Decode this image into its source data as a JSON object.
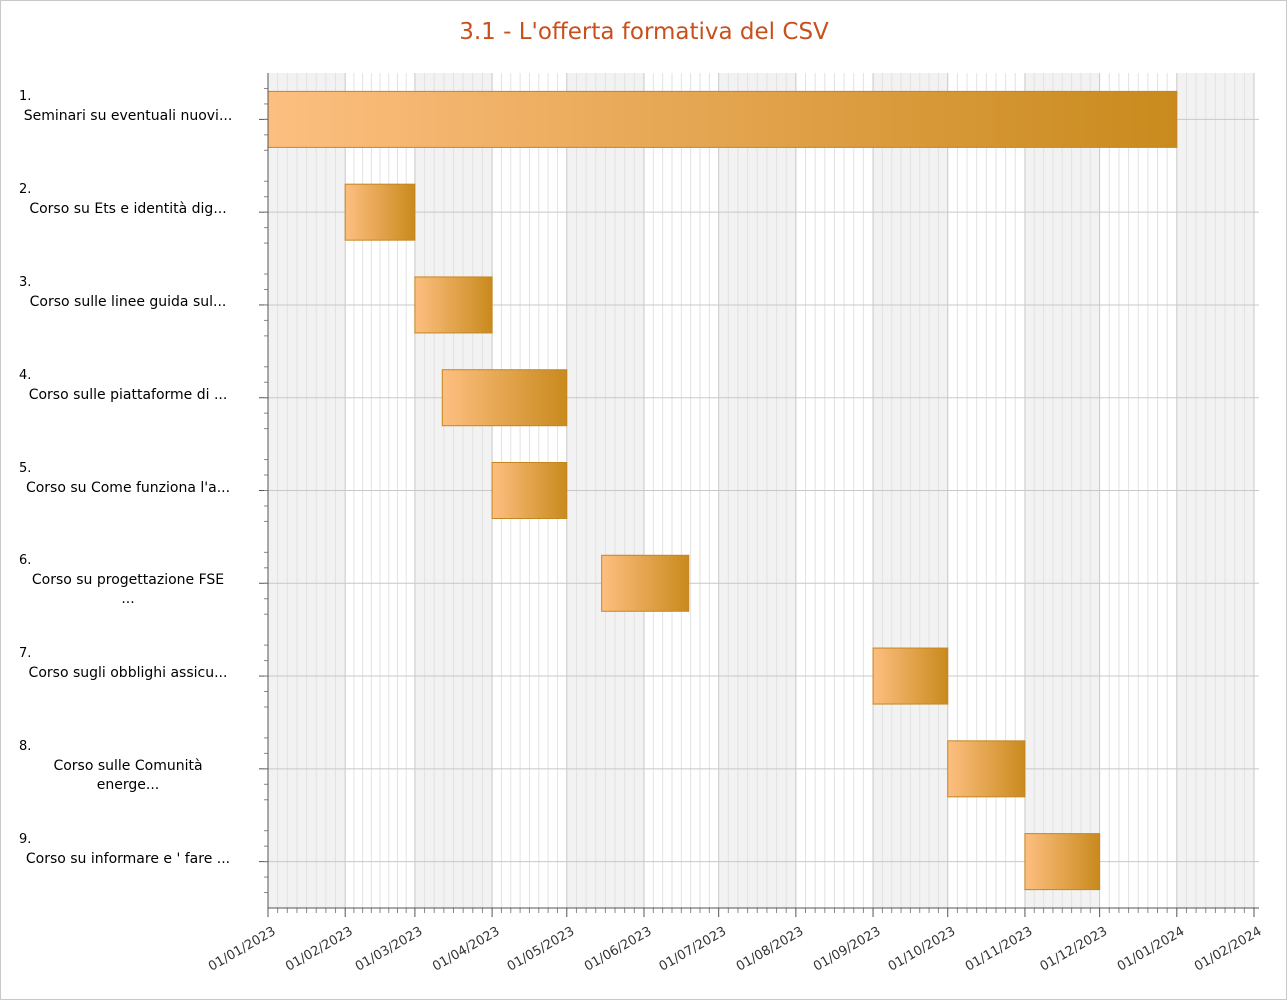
{
  "chart_data": {
    "type": "gantt",
    "title": "3.1 - L'offerta formativa del CSV",
    "tasks": [
      {
        "number": "1.",
        "name": "Seminari su eventuali nuovi...",
        "start": "2023-01-01",
        "end": "2024-01-01"
      },
      {
        "number": "2.",
        "name": "Corso su Ets e identità dig...",
        "start": "2023-02-01",
        "end": "2023-03-01"
      },
      {
        "number": "3.",
        "name": "Corso sulle linee guida sul...",
        "start": "2023-03-01",
        "end": "2023-04-01"
      },
      {
        "number": "4.",
        "name": "Corso sulle piattaforme di ...",
        "start": "2023-03-12",
        "end": "2023-05-01"
      },
      {
        "number": "5.",
        "name": "Corso  su Come funziona l'a...",
        "start": "2023-04-01",
        "end": "2023-05-01"
      },
      {
        "number": "6.",
        "name": "Corso su progettazione FSE ...",
        "start": "2023-05-15",
        "end": "2023-06-19"
      },
      {
        "number": "7.",
        "name": "Corso sugli obblighi assicu...",
        "start": "2023-09-01",
        "end": "2023-10-01"
      },
      {
        "number": "8.",
        "name": "Corso sulle Comunità energe...",
        "start": "2023-10-01",
        "end": "2023-11-01"
      },
      {
        "number": "9.",
        "name": "Corso su informare e ' fare ...",
        "start": "2023-11-01",
        "end": "2023-12-01"
      }
    ],
    "xlim": [
      "2023-01-01",
      "2024-02-01"
    ],
    "xticks": [
      {
        "value": "2023-01-01",
        "label": "01/01/2023"
      },
      {
        "value": "2023-02-01",
        "label": "01/02/2023"
      },
      {
        "value": "2023-03-01",
        "label": "01/03/2023"
      },
      {
        "value": "2023-04-01",
        "label": "01/04/2023"
      },
      {
        "value": "2023-05-01",
        "label": "01/05/2023"
      },
      {
        "value": "2023-06-01",
        "label": "01/06/2023"
      },
      {
        "value": "2023-07-01",
        "label": "01/07/2023"
      },
      {
        "value": "2023-08-01",
        "label": "01/08/2023"
      },
      {
        "value": "2023-09-01",
        "label": "01/09/2023"
      },
      {
        "value": "2023-10-01",
        "label": "01/10/2023"
      },
      {
        "value": "2023-11-01",
        "label": "01/11/2023"
      },
      {
        "value": "2023-12-01",
        "label": "01/12/2023"
      },
      {
        "value": "2024-01-01",
        "label": "01/01/2024"
      },
      {
        "value": "2024-02-01",
        "label": "01/02/2024"
      }
    ],
    "grid": true,
    "color_start": "#fdbf80",
    "color_end": "#c98a1d",
    "edge_color": "#c4861f"
  }
}
